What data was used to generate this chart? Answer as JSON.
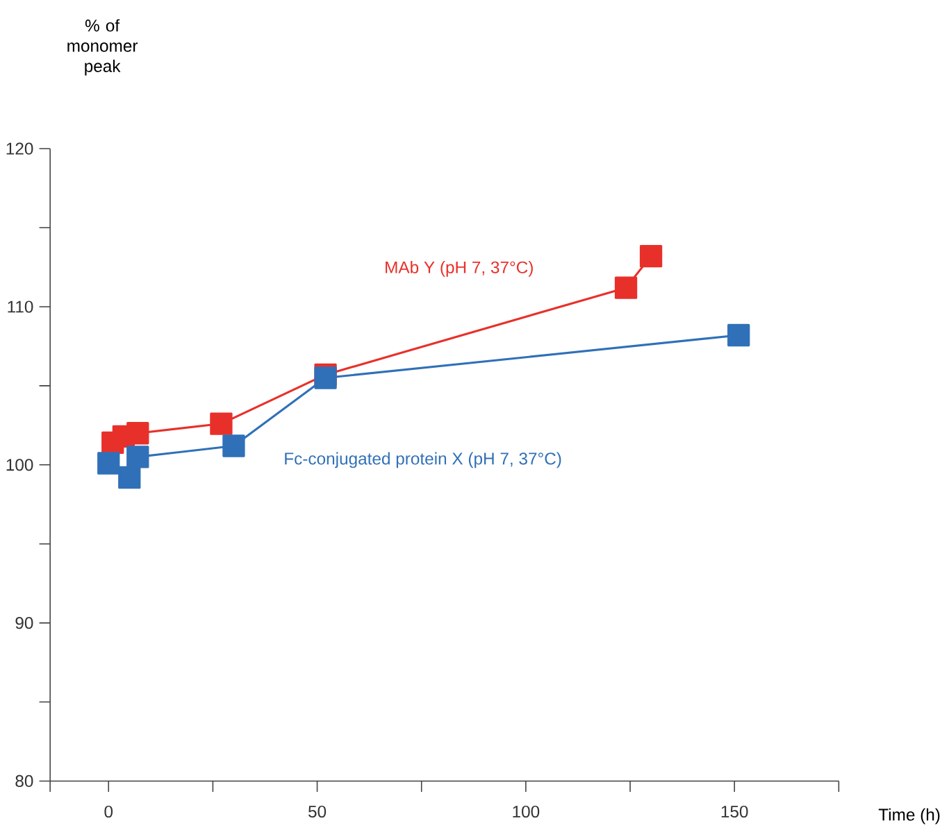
{
  "chart_data": {
    "type": "line",
    "ylabel": "% of monomer peak",
    "xlabel": "Time (h)",
    "marker": "square",
    "xlim": [
      -14,
      175
    ],
    "xticks": [
      {
        "value": -14,
        "label": null
      },
      0,
      {
        "value": 25,
        "label": null
      },
      50,
      {
        "value": 75,
        "label": null
      },
      100,
      {
        "value": 125,
        "label": null
      },
      150,
      {
        "value": 175,
        "label": null
      }
    ],
    "ylim": [
      80,
      120
    ],
    "yticks": [
      80,
      {
        "value": 85,
        "label": null
      },
      90,
      {
        "value": 95,
        "label": null
      },
      100,
      {
        "value": 105,
        "label": null
      },
      110,
      {
        "value": 115,
        "label": null
      },
      120
    ],
    "series": [
      {
        "name": "MAb Y (pH 7, 37°C)",
        "color": "#e8302a",
        "x": [
          1,
          3.6,
          7,
          27,
          52,
          124,
          130
        ],
        "values": [
          101.4,
          101.8,
          102.0,
          102.6,
          105.7,
          111.2,
          113.2
        ]
      },
      {
        "name": "Fc-conjugated protein X (pH 7, 37°C)",
        "color": "#3070b8",
        "x": [
          0,
          5,
          7,
          30,
          52,
          151
        ],
        "values": [
          100.1,
          99.2,
          100.5,
          101.2,
          105.5,
          108.2
        ]
      }
    ]
  }
}
